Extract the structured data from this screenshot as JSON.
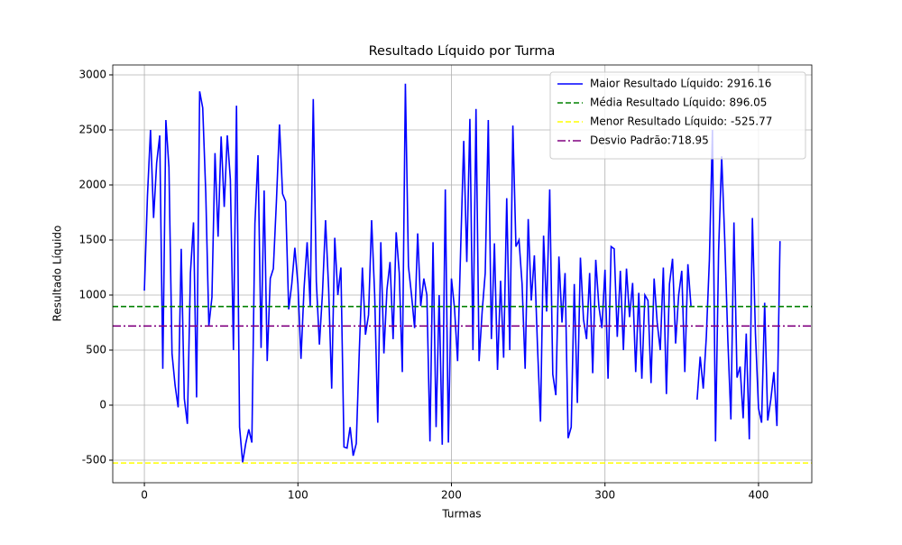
{
  "chart_data": {
    "type": "line",
    "title": "Resultado Líquido por Turma",
    "xlabel": "Turmas",
    "ylabel": "Resultado Líquido",
    "x": [
      0,
      2,
      4,
      6,
      8,
      10,
      12,
      14,
      16,
      18,
      20,
      22,
      24,
      26,
      28,
      30,
      32,
      34,
      36,
      38,
      40,
      42,
      44,
      46,
      48,
      50,
      52,
      54,
      56,
      58,
      60,
      62,
      64,
      66,
      68,
      70,
      72,
      74,
      76,
      78,
      80,
      82,
      84,
      86,
      88,
      90,
      92,
      94,
      96,
      98,
      100,
      102,
      104,
      106,
      108,
      110,
      112,
      114,
      116,
      118,
      120,
      122,
      124,
      126,
      128,
      130,
      132,
      134,
      136,
      138,
      140,
      142,
      144,
      146,
      148,
      150,
      152,
      154,
      156,
      158,
      160,
      162,
      164,
      166,
      168,
      170,
      172,
      174,
      176,
      178,
      180,
      182,
      184,
      186,
      188,
      190,
      192,
      194,
      196,
      198,
      200,
      202,
      204,
      206,
      208,
      210,
      212,
      214,
      216,
      218,
      220,
      222,
      224,
      226,
      228,
      230,
      232,
      234,
      236,
      238,
      240,
      242,
      244,
      246,
      248,
      250,
      252,
      254,
      256,
      258,
      260,
      262,
      264,
      266,
      268,
      270,
      272,
      274,
      276,
      278,
      280,
      282,
      284,
      286,
      288,
      290,
      292,
      294,
      296,
      298,
      300,
      302,
      304,
      306,
      308,
      310,
      312,
      314,
      316,
      318,
      320,
      322,
      324,
      326,
      328,
      330,
      332,
      334,
      336,
      338,
      340,
      342,
      344,
      346,
      348,
      350,
      352,
      354,
      356,
      358,
      360,
      362,
      364,
      366,
      368,
      370,
      372,
      374,
      376,
      378,
      380,
      382,
      384,
      386,
      388,
      390,
      392,
      394,
      396,
      398,
      400,
      402,
      404,
      406,
      408,
      410,
      412,
      414
    ],
    "series": [
      {
        "name": "Maior Resultado Líquido: 2916.16",
        "color": "#0000ff",
        "linestyle": "-",
        "values": [
          1040,
          1900,
          2500,
          1700,
          2200,
          2450,
          330,
          2590,
          2160,
          470,
          180,
          -20,
          1420,
          60,
          -170,
          1200,
          1660,
          70,
          2850,
          2700,
          1920,
          720,
          980,
          2290,
          1530,
          2440,
          1800,
          2450,
          2050,
          500,
          2720,
          -200,
          -520,
          -350,
          -220,
          -340,
          1650,
          2270,
          520,
          1950,
          400,
          1150,
          1240,
          1850,
          2550,
          1920,
          1850,
          870,
          1100,
          1430,
          1100,
          420,
          1060,
          1480,
          900,
          2780,
          1120,
          550,
          1020,
          1680,
          1060,
          150,
          1520,
          1000,
          1250,
          -380,
          -390,
          -200,
          -460,
          -350,
          500,
          1250,
          640,
          820,
          1680,
          1000,
          -160,
          1480,
          470,
          1050,
          1300,
          600,
          1570,
          1200,
          300,
          2920,
          1260,
          1000,
          700,
          1560,
          900,
          1150,
          1000,
          -330,
          1480,
          -200,
          1000,
          -360,
          1960,
          -340,
          1150,
          880,
          400,
          1420,
          2400,
          1300,
          2600,
          500,
          2690,
          400,
          850,
          1200,
          2590,
          600,
          1470,
          320,
          1130,
          430,
          1880,
          500,
          2540,
          1440,
          1500,
          1100,
          330,
          1690,
          950,
          1360,
          550,
          -150,
          1540,
          850,
          1960,
          280,
          90,
          1350,
          750,
          1200,
          -300,
          -200,
          1100,
          20,
          1340,
          780,
          600,
          1200,
          290,
          1320,
          900,
          700,
          1230,
          240,
          1440,
          1420,
          620,
          1220,
          500,
          1240,
          800,
          1110,
          300,
          1020,
          240,
          1000,
          950,
          200,
          1150,
          750,
          500,
          1250,
          100,
          1100,
          1330,
          560,
          1000,
          1220,
          300,
          1280,
          900,
          null,
          50,
          440,
          150,
          620,
          1320,
          2500,
          -330,
          1400,
          2260,
          1500,
          600,
          -130,
          1660,
          250,
          350,
          -120,
          650,
          -310,
          1700,
          650,
          -30,
          -160,
          930,
          -140,
          50,
          300,
          -190,
          1490
        ]
      }
    ],
    "hlines": [
      {
        "name": "Média Resultado Líquido: 896.05",
        "value": 896.05,
        "color": "#008000",
        "linestyle": "--"
      },
      {
        "name": "Menor Resultado Líquido: -525.77",
        "value": -525.77,
        "color": "#ffff00",
        "linestyle": "--"
      },
      {
        "name": "Desvio Padrão:718.95",
        "value": 718.95,
        "color": "#800080",
        "linestyle": "-."
      }
    ],
    "xlim": [
      -20.6,
      434.7
    ],
    "ylim": [
      -705,
      3090
    ],
    "xticks": [
      0,
      100,
      200,
      300,
      400
    ],
    "yticks": [
      -500,
      0,
      500,
      1000,
      1500,
      2000,
      2500,
      3000
    ],
    "grid": true,
    "legend": "upper right"
  }
}
